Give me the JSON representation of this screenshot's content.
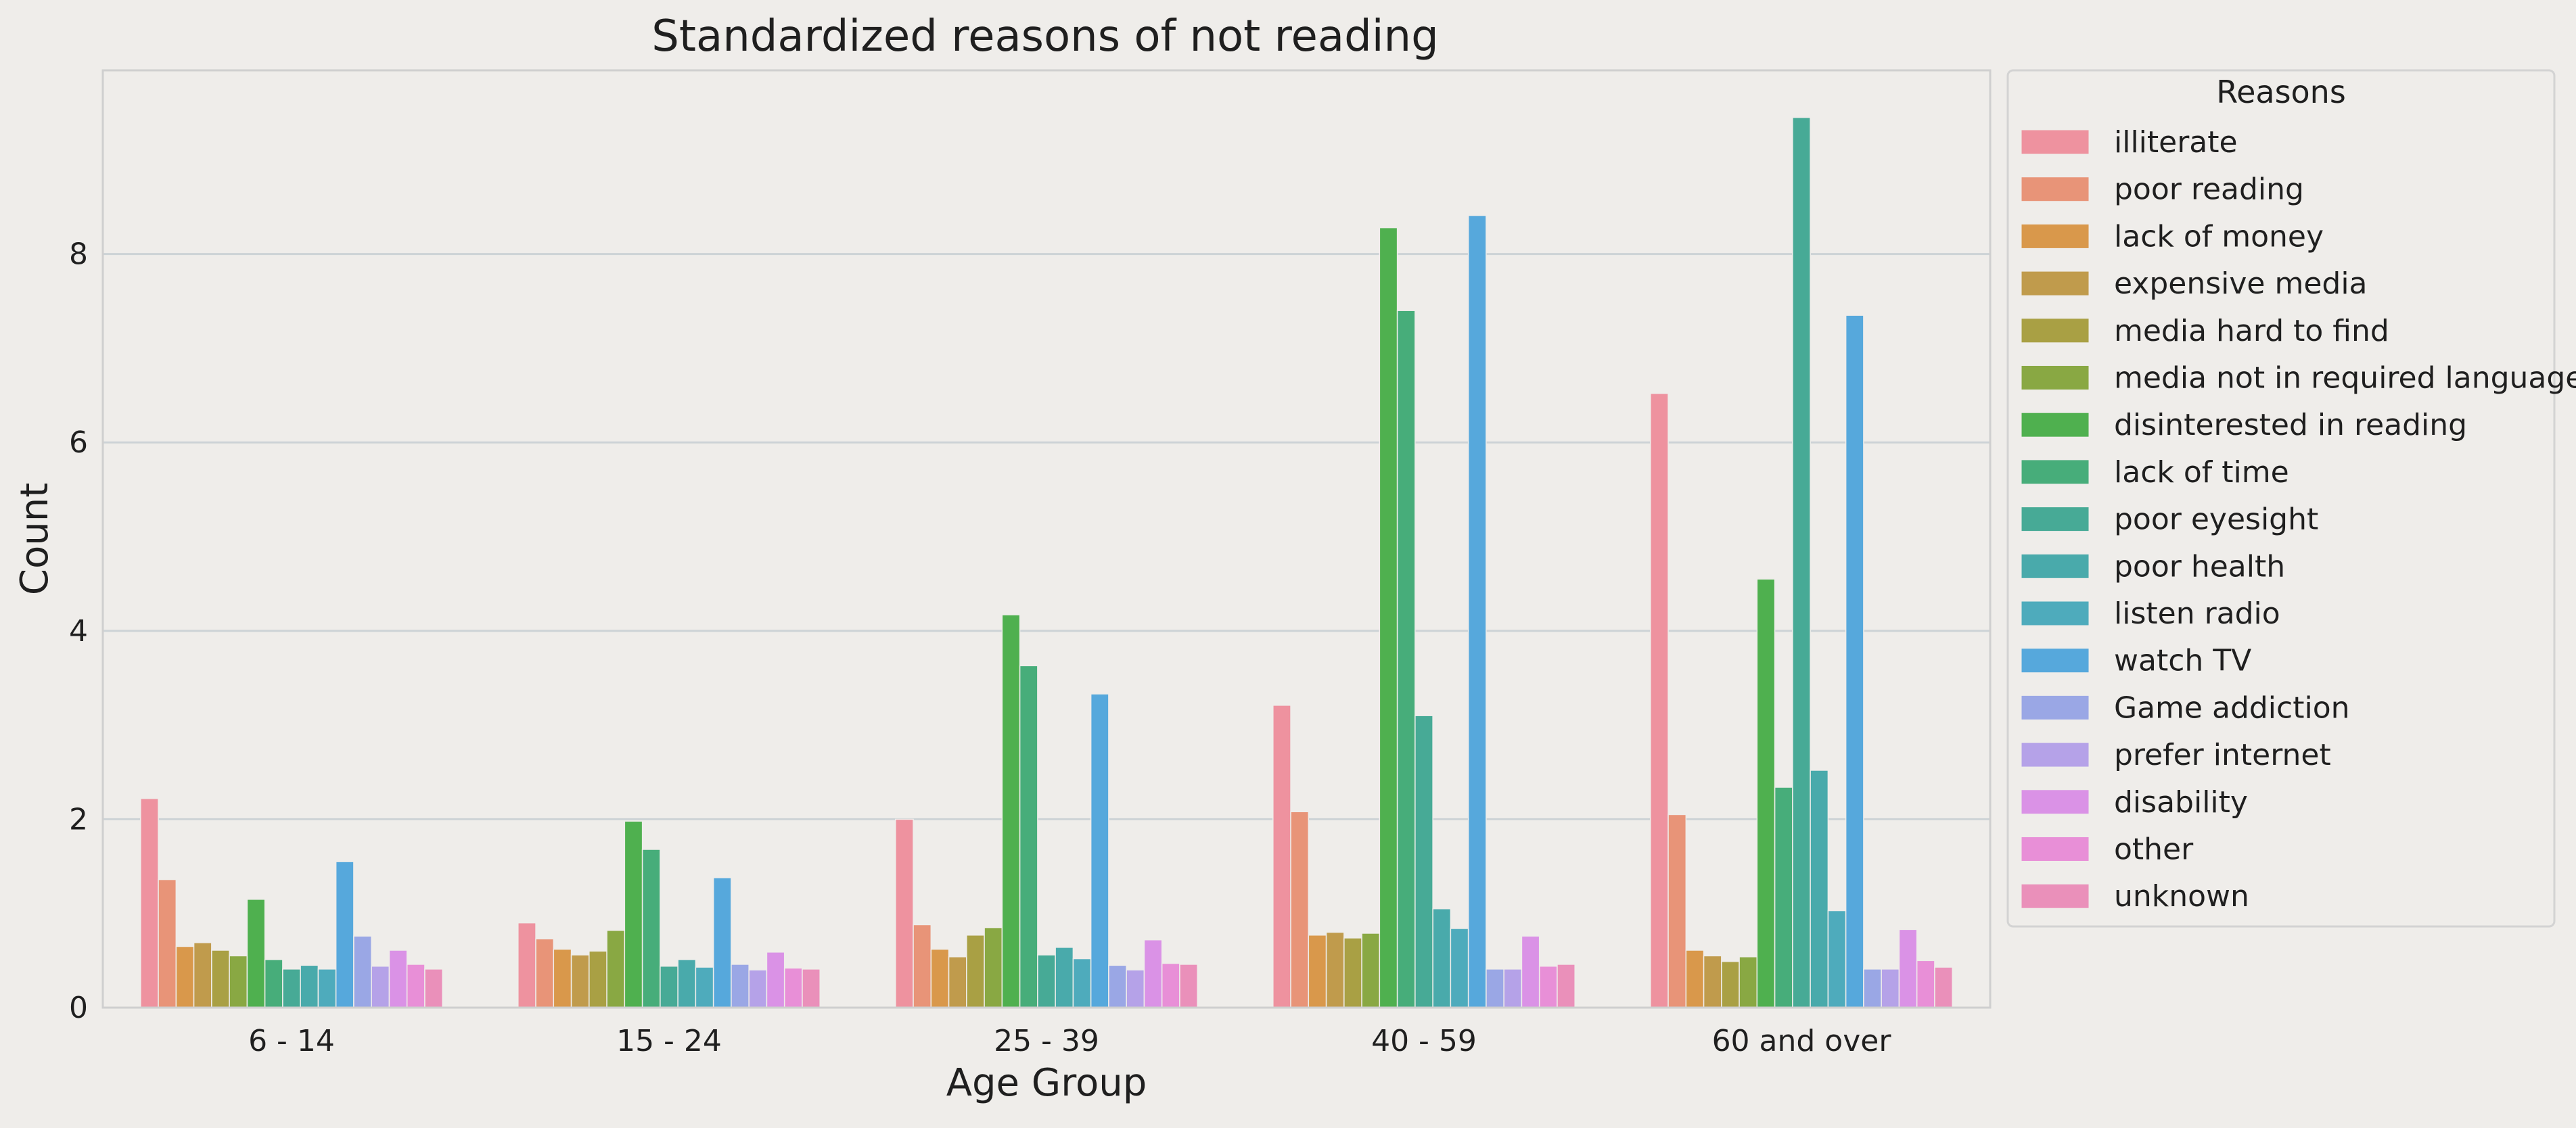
{
  "chart_data": {
    "type": "bar",
    "title": "Standardized reasons of not reading",
    "xlabel": "Age Group",
    "ylabel": "Count",
    "ylim": [
      0,
      9.95
    ],
    "yticks": [
      0,
      2,
      4,
      6,
      8
    ],
    "grid": true,
    "legend": {
      "title": "Reasons",
      "placement": "right, outside plot, top"
    },
    "categories": [
      "6 - 14",
      "15 - 24",
      "25 - 39",
      "40 - 59",
      "60 and over"
    ],
    "series": [
      {
        "name": "illiterate",
        "color": "#ee929f",
        "values": [
          2.22,
          0.9,
          2.0,
          3.21,
          6.52
        ]
      },
      {
        "name": "poor reading",
        "color": "#e89478",
        "values": [
          1.36,
          0.73,
          0.88,
          2.08,
          2.05
        ]
      },
      {
        "name": "lack of money",
        "color": "#d9984b",
        "values": [
          0.65,
          0.62,
          0.62,
          0.77,
          0.61
        ]
      },
      {
        "name": "expensive media",
        "color": "#c09b4c",
        "values": [
          0.69,
          0.56,
          0.54,
          0.8,
          0.55
        ]
      },
      {
        "name": "media hard to find",
        "color": "#a9a044",
        "values": [
          0.61,
          0.6,
          0.77,
          0.74,
          0.49
        ]
      },
      {
        "name": "media not in required language",
        "color": "#89a843",
        "values": [
          0.55,
          0.82,
          0.85,
          0.79,
          0.54
        ]
      },
      {
        "name": "disinterested in reading",
        "color": "#4fb04f",
        "values": [
          1.15,
          1.98,
          4.17,
          8.28,
          4.55
        ]
      },
      {
        "name": "lack of time",
        "color": "#47ad7a",
        "values": [
          0.51,
          1.68,
          3.63,
          7.4,
          2.34
        ]
      },
      {
        "name": "poor eyesight",
        "color": "#47aa96",
        "values": [
          0.41,
          0.44,
          0.56,
          3.1,
          9.45
        ]
      },
      {
        "name": "poor health",
        "color": "#49aaab",
        "values": [
          0.45,
          0.51,
          0.64,
          1.05,
          2.52
        ]
      },
      {
        "name": "listen radio",
        "color": "#4eabbc",
        "values": [
          0.41,
          0.43,
          0.52,
          0.84,
          1.03
        ]
      },
      {
        "name": "watch TV",
        "color": "#56a8dc",
        "values": [
          1.55,
          1.38,
          3.33,
          8.41,
          7.35
        ]
      },
      {
        "name": "Game addiction",
        "color": "#9aa7e5",
        "values": [
          0.76,
          0.46,
          0.45,
          0.41,
          0.41
        ]
      },
      {
        "name": "prefer internet",
        "color": "#b5a2e8",
        "values": [
          0.44,
          0.4,
          0.4,
          0.41,
          0.41
        ]
      },
      {
        "name": "disability",
        "color": "#da92e6",
        "values": [
          0.61,
          0.59,
          0.72,
          0.76,
          0.83
        ]
      },
      {
        "name": "other",
        "color": "#e88fd7",
        "values": [
          0.46,
          0.42,
          0.47,
          0.44,
          0.5
        ]
      },
      {
        "name": "unknown",
        "color": "#ea90ba",
        "values": [
          0.41,
          0.41,
          0.46,
          0.46,
          0.43
        ]
      }
    ]
  }
}
